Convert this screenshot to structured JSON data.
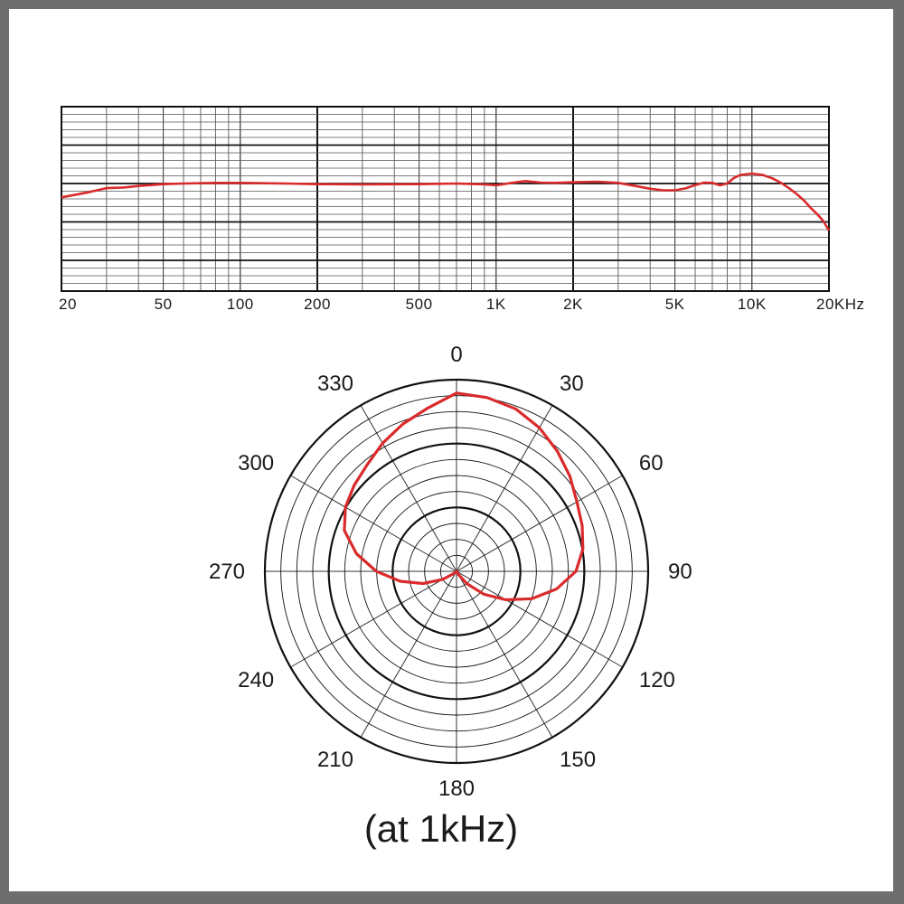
{
  "chart_data": [
    {
      "type": "line",
      "x_scale": "log",
      "xlim": [
        20,
        20000
      ],
      "ylim": [
        -4,
        2
      ],
      "grid": true,
      "x_tick_labels": [
        {
          "value": 20,
          "label": "20"
        },
        {
          "value": 50,
          "label": "50"
        },
        {
          "value": 100,
          "label": "100"
        },
        {
          "value": 200,
          "label": "200"
        },
        {
          "value": 500,
          "label": "500"
        },
        {
          "value": 1000,
          "label": "1K"
        },
        {
          "value": 2000,
          "label": "2K"
        },
        {
          "value": 5000,
          "label": "5K"
        },
        {
          "value": 10000,
          "label": "10K"
        },
        {
          "value": 20000,
          "label": "20KHz"
        }
      ],
      "series": [
        {
          "color": "#d92b2b",
          "x": [
            20,
            25,
            30,
            35,
            40,
            50,
            60,
            80,
            100,
            150,
            200,
            300,
            500,
            700,
            900,
            1000,
            1150,
            1300,
            1500,
            1700,
            2000,
            2500,
            3000,
            3500,
            4000,
            4500,
            5000,
            5500,
            6000,
            6500,
            7000,
            7500,
            8000,
            8500,
            9000,
            10000,
            11000,
            12000,
            13000,
            14000,
            15000,
            16000,
            17000,
            18000,
            19000,
            20000
          ],
          "y": [
            -0.95,
            -0.8,
            -0.65,
            -0.63,
            -0.58,
            -0.52,
            -0.5,
            -0.48,
            -0.48,
            -0.5,
            -0.52,
            -0.53,
            -0.52,
            -0.5,
            -0.53,
            -0.56,
            -0.48,
            -0.42,
            -0.47,
            -0.48,
            -0.46,
            -0.44,
            -0.48,
            -0.58,
            -0.67,
            -0.72,
            -0.72,
            -0.66,
            -0.55,
            -0.47,
            -0.48,
            -0.56,
            -0.5,
            -0.32,
            -0.22,
            -0.18,
            -0.22,
            -0.33,
            -0.48,
            -0.66,
            -0.85,
            -1.06,
            -1.3,
            -1.5,
            -1.72,
            -2.03
          ]
        }
      ]
    },
    {
      "type": "polar",
      "angle_labels": [
        "0",
        "30",
        "60",
        "90",
        "120",
        "150",
        "180",
        "210",
        "240",
        "270",
        "300",
        "330"
      ],
      "r_range": [
        0,
        1
      ],
      "rings": 12,
      "bold_rings": [
        4,
        8,
        12
      ],
      "series": [
        {
          "color": "#d92b2b",
          "angles": [
            0,
            10,
            20,
            30,
            40,
            50,
            60,
            70,
            80,
            90,
            100,
            110,
            120,
            130,
            140,
            150,
            160,
            170,
            180,
            190,
            200,
            210,
            220,
            230,
            240,
            250,
            260,
            270,
            280,
            290,
            300,
            310,
            320,
            330,
            340,
            350
          ],
          "r": [
            1.0,
            0.99,
            0.97,
            0.93,
            0.88,
            0.83,
            0.78,
            0.75,
            0.72,
            0.67,
            0.57,
            0.45,
            0.32,
            0.2,
            0.09,
            0.02,
            0.0,
            0.0,
            0.0,
            0.0,
            0.0,
            0.0,
            0.0,
            0.02,
            0.09,
            0.2,
            0.32,
            0.45,
            0.57,
            0.67,
            0.72,
            0.75,
            0.78,
            0.83,
            0.88,
            0.93
          ]
        }
      ]
    }
  ],
  "caption": "(at 1kHz)"
}
